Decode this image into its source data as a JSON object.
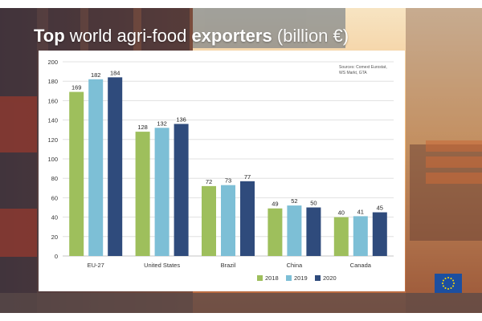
{
  "headline": {
    "part1": "Top",
    "part2": " world agri-food ",
    "part3": "exporters",
    "part4": " (billion €)"
  },
  "source_note": {
    "line1": "Sources: Comext Eurostat,",
    "line2": "WS Markt, GTA"
  },
  "logo": "eu-flag-icon",
  "colors": {
    "2018": "#9ebf5c",
    "2019": "#7dbfd6",
    "2020": "#2f4b7c",
    "headline": "#ffffff",
    "gridline": "#d9d9d9"
  },
  "chart_data": {
    "type": "bar",
    "title": "",
    "xlabel": "",
    "ylabel": "",
    "categories": [
      "EU-27",
      "United States",
      "Brazil",
      "China",
      "Canada"
    ],
    "series": [
      {
        "name": "2018",
        "values": [
          169,
          128,
          72,
          49,
          40
        ]
      },
      {
        "name": "2019",
        "values": [
          182,
          132,
          73,
          52,
          41
        ]
      },
      {
        "name": "2020",
        "values": [
          184,
          136,
          77,
          50,
          45
        ]
      }
    ],
    "ylim": [
      0,
      200
    ],
    "yticks": [
      0,
      20,
      40,
      60,
      80,
      100,
      120,
      140,
      160,
      180,
      200
    ],
    "grid": true,
    "legend_position": "bottom-right",
    "data_labels": true
  }
}
